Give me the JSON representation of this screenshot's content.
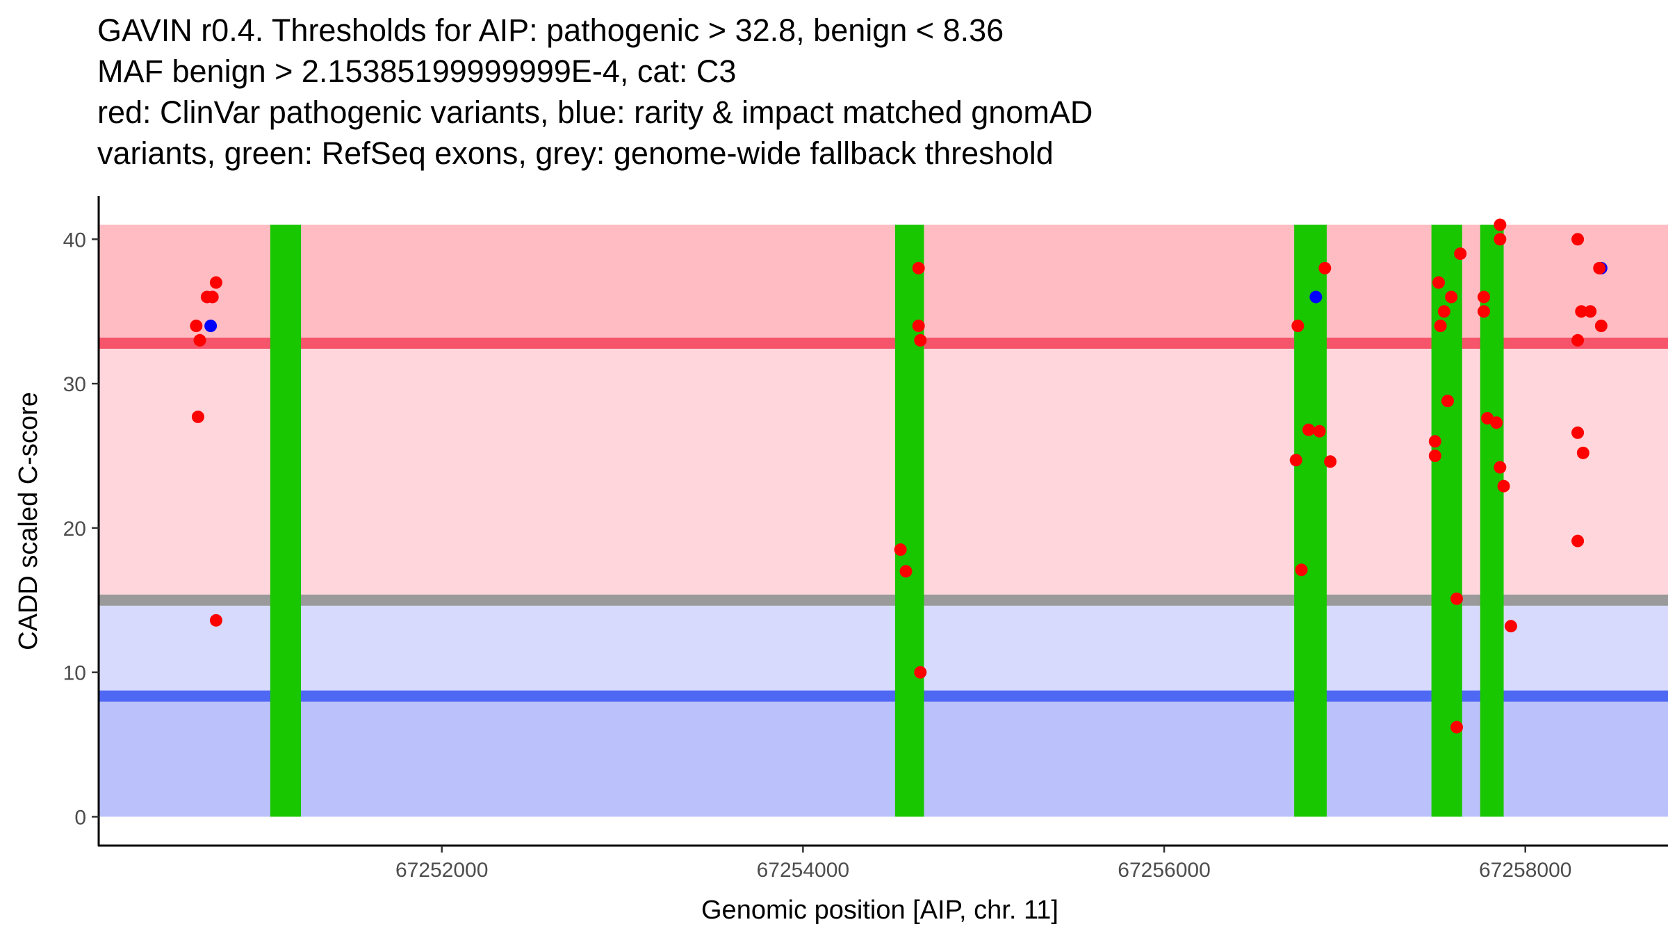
{
  "title_lines": [
    "GAVIN r0.4. Thresholds for AIP: pathogenic > 32.8, benign < 8.36",
    "MAF benign > 2.15385199999999E-4, cat: C3",
    "red: ClinVar pathogenic variants, blue: rarity & impact matched gnomAD",
    "variants, green: RefSeq exons, grey: genome-wide fallback threshold"
  ],
  "colors": {
    "pathogenic_point": "#ff0000",
    "benign_point": "#0000ff",
    "exon": "#19c700",
    "pathogenic_line": "#f5546a",
    "benign_line": "#4f68f4",
    "fallback_line": "#9a9a9a",
    "band_high": "#ffbcc3",
    "band_mid": "#ffd6dc",
    "band_low": "#d7dafd",
    "band_bottom": "#bbc1fb"
  },
  "chart_data": {
    "type": "scatter",
    "xlabel": "Genomic position [AIP, chr. 11]",
    "ylabel": "CADD scaled C-score",
    "xlim": [
      67250100,
      67258790
    ],
    "ylim": [
      -2,
      43
    ],
    "x_ticks": [
      67252000,
      67254000,
      67256000,
      67258000
    ],
    "y_ticks": [
      0,
      10,
      20,
      30,
      40
    ],
    "thresholds": {
      "pathogenic": 32.8,
      "benign": 8.36,
      "fallback": 15
    },
    "bands": [
      {
        "name": "high",
        "from": 32.8,
        "to": 41
      },
      {
        "name": "mid",
        "from": 15,
        "to": 32.8
      },
      {
        "name": "low",
        "from": 8.36,
        "to": 15
      },
      {
        "name": "bottom",
        "from": 0,
        "to": 8.36
      }
    ],
    "exons": [
      {
        "start": 67251050,
        "end": 67251220
      },
      {
        "start": 67254510,
        "end": 67254670
      },
      {
        "start": 67256720,
        "end": 67256900
      },
      {
        "start": 67257480,
        "end": 67257650
      },
      {
        "start": 67257750,
        "end": 67257880
      }
    ],
    "series": [
      {
        "name": "ClinVar pathogenic",
        "color_key": "pathogenic_point",
        "points": [
          [
            67250640,
            34
          ],
          [
            67250660,
            33
          ],
          [
            67250650,
            27.7
          ],
          [
            67250700,
            36
          ],
          [
            67250730,
            36
          ],
          [
            67250750,
            37
          ],
          [
            67250750,
            13.6
          ],
          [
            67254540,
            18.5
          ],
          [
            67254570,
            17
          ],
          [
            67254640,
            38
          ],
          [
            67254640,
            34
          ],
          [
            67254650,
            33
          ],
          [
            67254650,
            10
          ],
          [
            67256740,
            34
          ],
          [
            67256730,
            24.7
          ],
          [
            67256760,
            17.1
          ],
          [
            67256800,
            26.8
          ],
          [
            67256860,
            26.7
          ],
          [
            67256890,
            38
          ],
          [
            67256920,
            24.6
          ],
          [
            67257500,
            26
          ],
          [
            67257500,
            25
          ],
          [
            67257520,
            37
          ],
          [
            67257530,
            34
          ],
          [
            67257550,
            35
          ],
          [
            67257570,
            28.8
          ],
          [
            67257590,
            36
          ],
          [
            67257620,
            15.1
          ],
          [
            67257620,
            6.2
          ],
          [
            67257640,
            39
          ],
          [
            67257770,
            36
          ],
          [
            67257770,
            35
          ],
          [
            67257790,
            27.6
          ],
          [
            67257840,
            27.3
          ],
          [
            67257860,
            41
          ],
          [
            67257860,
            40
          ],
          [
            67257860,
            24.2
          ],
          [
            67257880,
            22.9
          ],
          [
            67257920,
            13.2
          ],
          [
            67258290,
            40
          ],
          [
            67258290,
            33
          ],
          [
            67258290,
            26.6
          ],
          [
            67258290,
            19.1
          ],
          [
            67258310,
            35
          ],
          [
            67258320,
            25.2
          ],
          [
            67258360,
            35
          ],
          [
            67258410,
            38
          ],
          [
            67258420,
            34
          ]
        ]
      },
      {
        "name": "gnomAD matched",
        "color_key": "benign_point",
        "points": [
          [
            67250720,
            34
          ],
          [
            67256840,
            36
          ],
          [
            67258420,
            38
          ]
        ]
      }
    ]
  }
}
